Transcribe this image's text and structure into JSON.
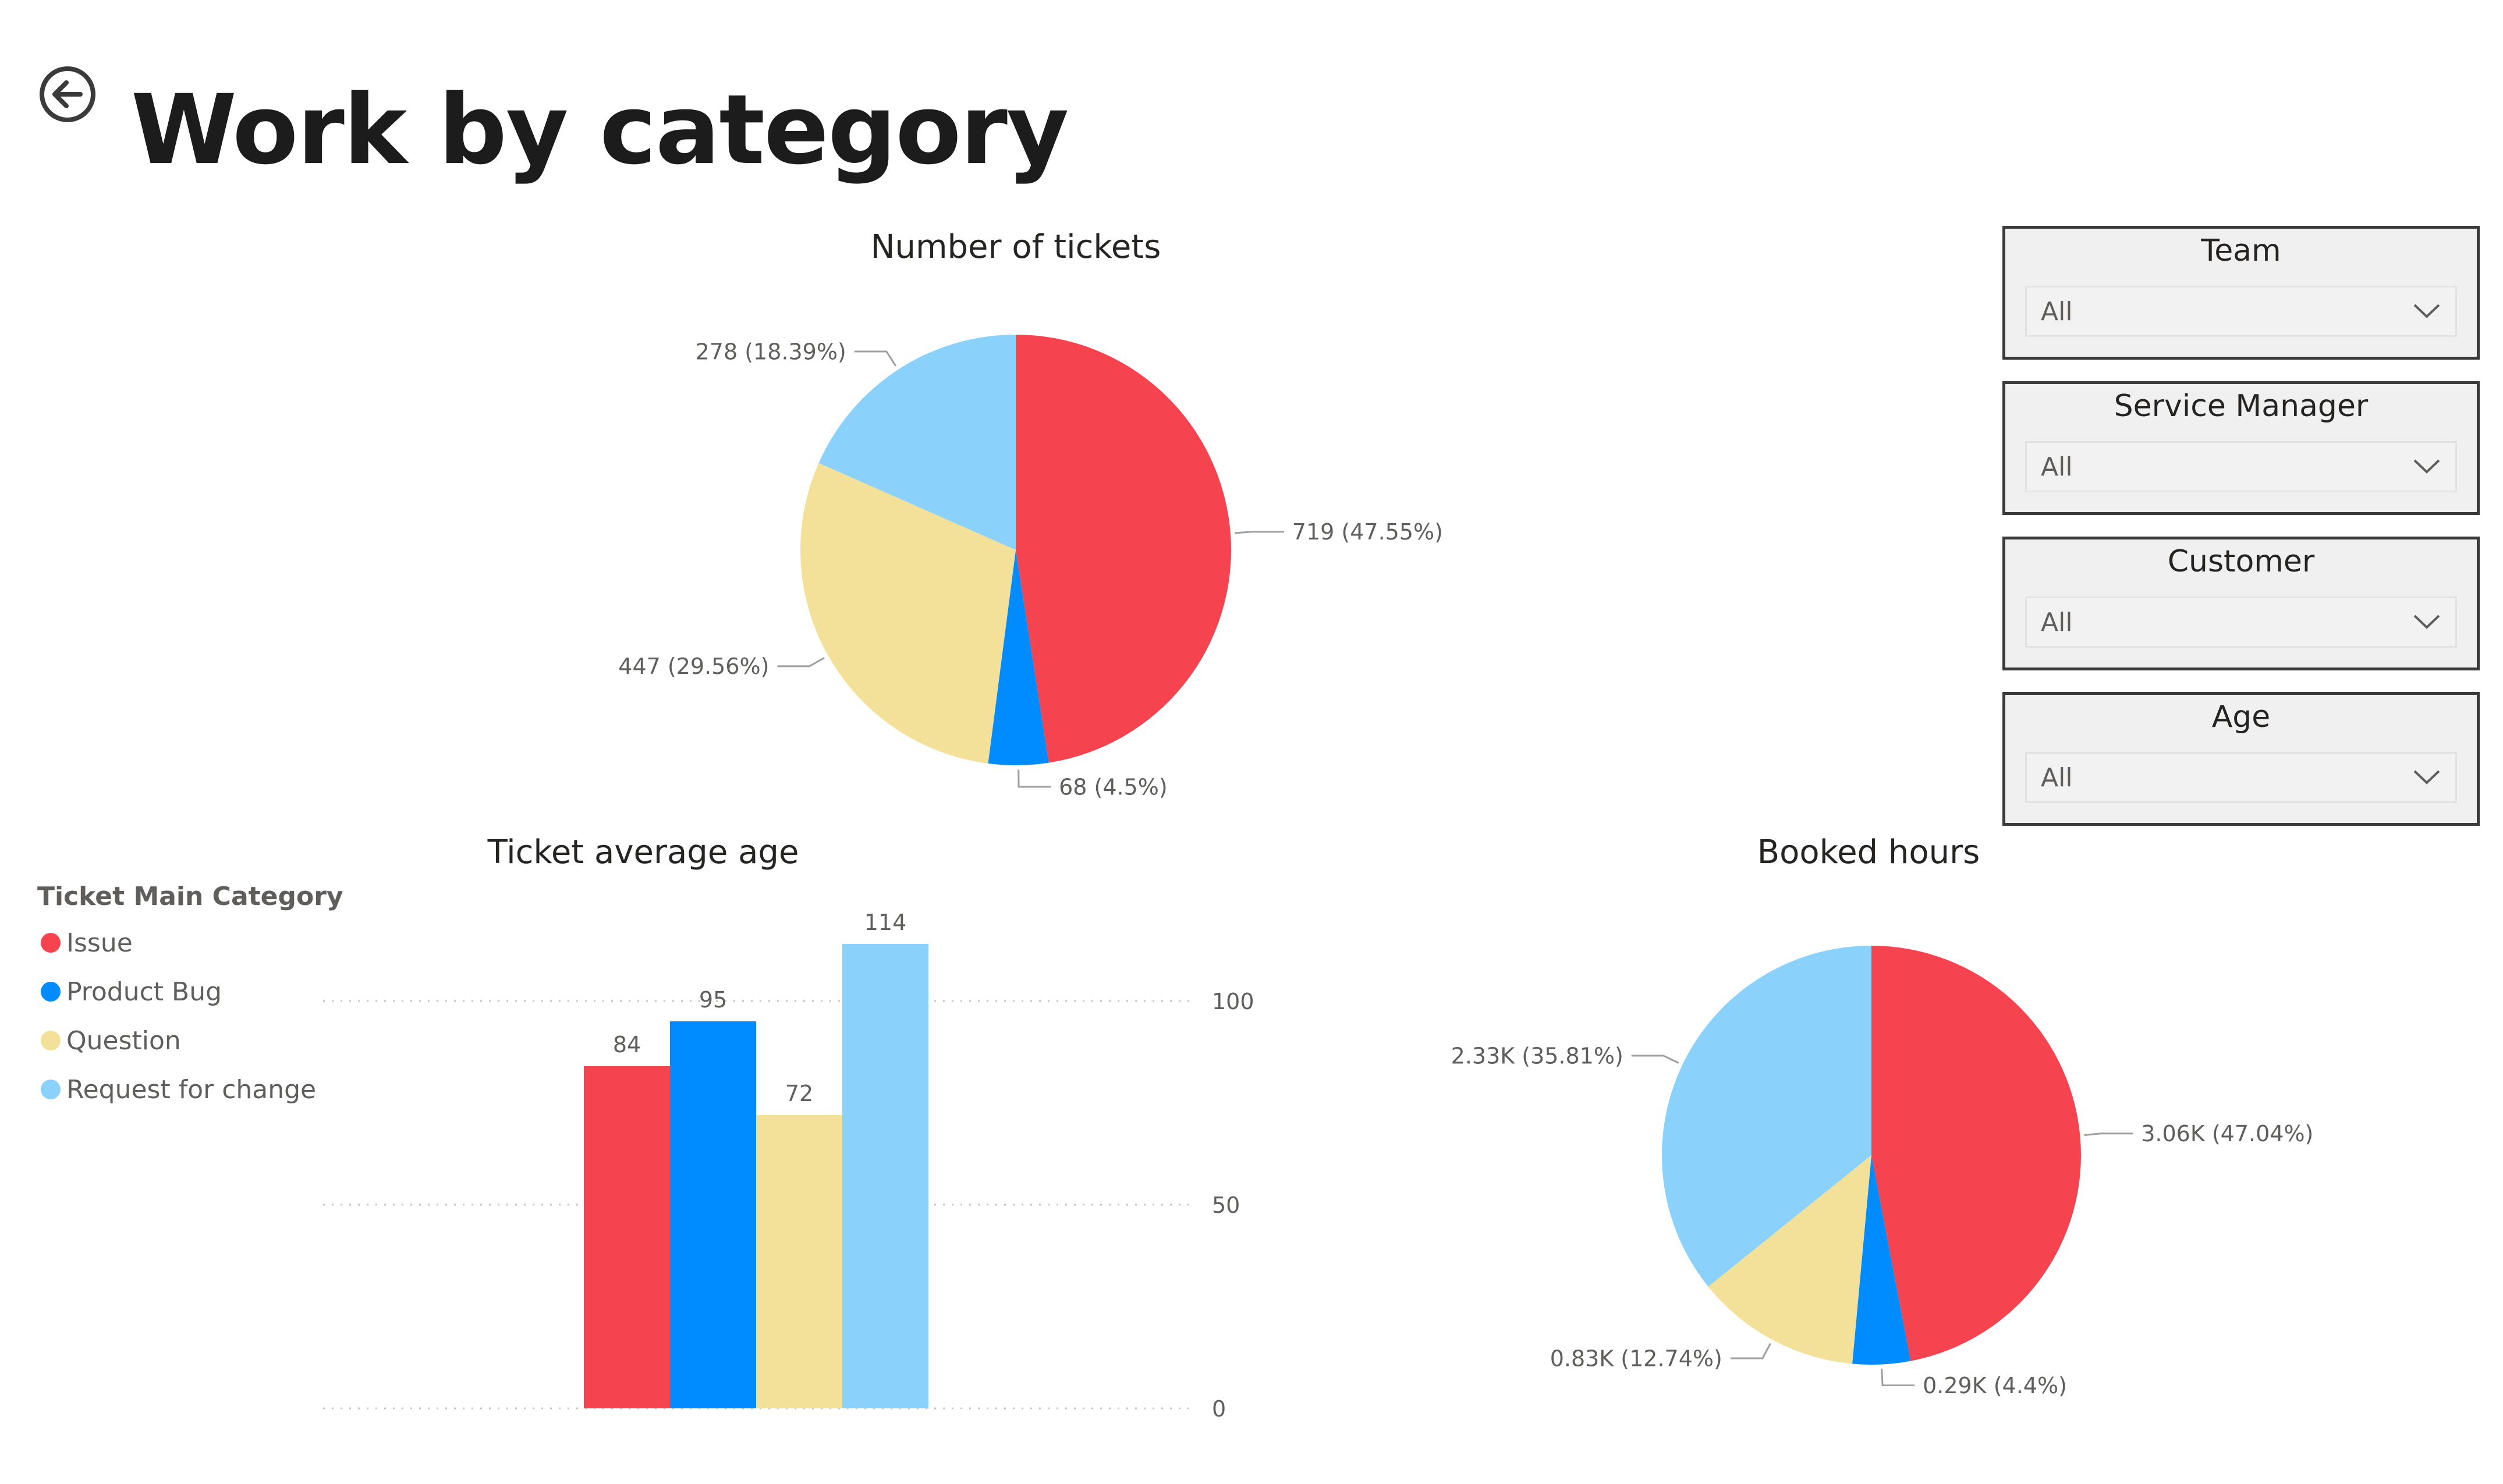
{
  "page": {
    "title": "Work by category",
    "back_icon": "back-arrow-circle-icon"
  },
  "colors": {
    "issue": "#F64350",
    "product_bug": "#008CFE",
    "question": "#F3E19A",
    "request_for_change": "#8AD1FC",
    "label": "#605e5c",
    "grid": "#c8c6c4"
  },
  "legend": {
    "title": "Ticket Main Category",
    "items": [
      {
        "label": "Issue",
        "color": "#F64350"
      },
      {
        "label": "Product Bug",
        "color": "#008CFE"
      },
      {
        "label": "Question",
        "color": "#F3E19A"
      },
      {
        "label": "Request for change",
        "color": "#8AD1FC"
      }
    ]
  },
  "slicers": [
    {
      "title": "Team",
      "value": "All",
      "icon": "chevron-down-icon"
    },
    {
      "title": "Service Manager",
      "value": "All",
      "icon": "chevron-down-icon"
    },
    {
      "title": "Customer",
      "value": "All",
      "icon": "chevron-down-icon"
    },
    {
      "title": "Age",
      "value": "All",
      "icon": "chevron-down-icon"
    }
  ],
  "chart_data": [
    {
      "type": "pie",
      "title": "Number of tickets",
      "categories": [
        "Issue",
        "Product Bug",
        "Question",
        "Request for change"
      ],
      "values": [
        719,
        68,
        447,
        278
      ],
      "data_labels": [
        "719 (47.55%)",
        "68 (4.5%)",
        "447 (29.56%)",
        "278 (18.39%)"
      ]
    },
    {
      "type": "bar",
      "title": "Ticket average age",
      "categories": [
        "Issue",
        "Product Bug",
        "Question",
        "Request for change"
      ],
      "values": [
        84,
        95,
        72,
        114
      ],
      "data_labels": [
        "84",
        "95",
        "72",
        "114"
      ],
      "ylim": [
        0,
        120
      ],
      "yticks": [
        0,
        50,
        100
      ],
      "ytick_labels": [
        "0",
        "50",
        "100"
      ],
      "yaxis_position": "right",
      "grid": true,
      "legend_position": "left"
    },
    {
      "type": "pie",
      "title": "Booked hours",
      "categories": [
        "Issue",
        "Product Bug",
        "Question",
        "Request for change"
      ],
      "values": [
        3060,
        290,
        830,
        2330
      ],
      "data_labels": [
        "3.06K (47.04%)",
        "0.29K (4.4%)",
        "0.83K (12.74%)",
        "2.33K (35.81%)"
      ]
    }
  ]
}
